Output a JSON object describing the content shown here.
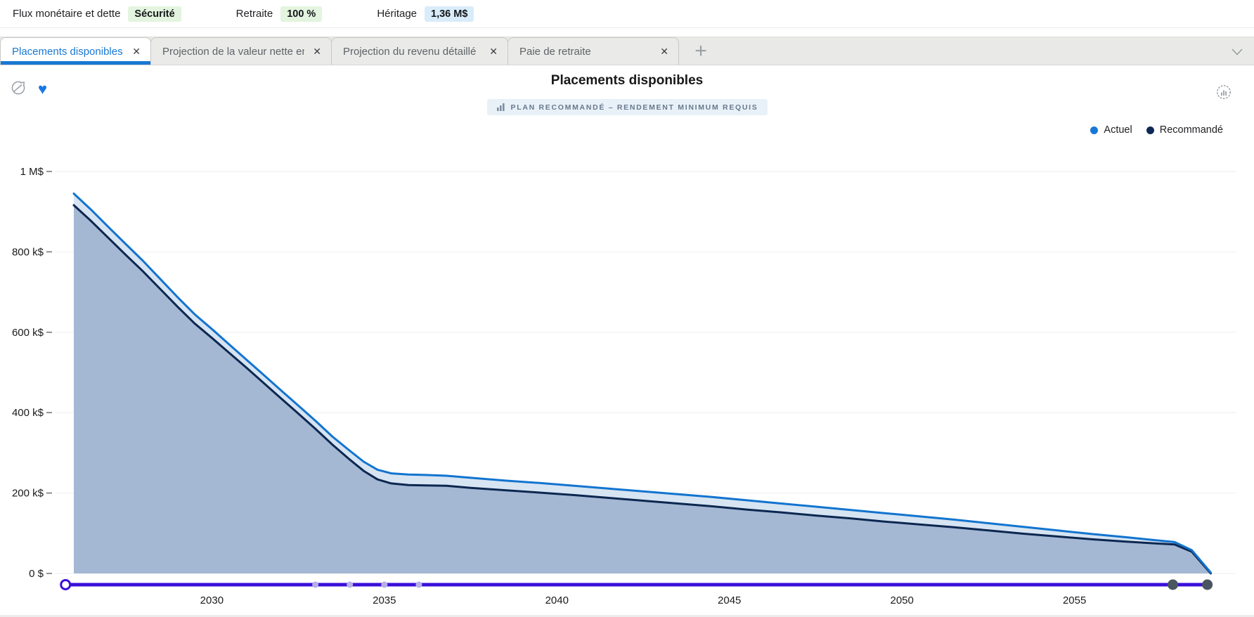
{
  "header": {
    "items": [
      {
        "label": "Flux monétaire et dette",
        "badge": "Sécurité",
        "badge_color": "#e3f4df"
      },
      {
        "label": "Retraite",
        "badge": "100 %",
        "badge_color": "#e3f4df"
      },
      {
        "label": "Héritage",
        "badge": "1,36 M$",
        "badge_color": "#d9ecfa"
      }
    ]
  },
  "tabs": {
    "items": [
      {
        "label": "Placements disponibles",
        "active": true
      },
      {
        "label": "Projection de la valeur nette emp",
        "active": false
      },
      {
        "label": "Projection du revenu détaillé",
        "active": false
      },
      {
        "label": "Paie de retraite",
        "active": false
      }
    ],
    "close_glyph": "✕",
    "add_glyph": "+"
  },
  "chart": {
    "title": "Placements disponibles",
    "subtitle": "PLAN RECOMMANDÉ – RENDEMENT MINIMUM REQUIS",
    "legend": [
      {
        "label": "Actuel",
        "color": "#1878d8"
      },
      {
        "label": "Recommandé",
        "color": "#0d2a56"
      }
    ]
  },
  "chart_data": {
    "type": "area",
    "title": "Placements disponibles",
    "unit": "k$",
    "xlim": [
      2026,
      2059
    ],
    "ylim": [
      0,
      1000
    ],
    "grid": true,
    "legend_position": "top-right",
    "y_ticks": [
      {
        "label": "1 M$",
        "value": 1000
      },
      {
        "label": "800 k$",
        "value": 800
      },
      {
        "label": "600 k$",
        "value": 600
      },
      {
        "label": "400 k$",
        "value": 400
      },
      {
        "label": "200 k$",
        "value": 200
      },
      {
        "label": "0 $",
        "value": 0
      }
    ],
    "x_ticks": [
      2030,
      2035,
      2040,
      2045,
      2050,
      2055
    ],
    "fills": {
      "between": "#d7e4f2",
      "below": "#a4b8d4"
    },
    "series": [
      {
        "name": "Actuel",
        "color": "#1274cf",
        "points": [
          [
            2026,
            945
          ],
          [
            2026.5,
            905
          ],
          [
            2027,
            862
          ],
          [
            2027.5,
            820
          ],
          [
            2028,
            778
          ],
          [
            2028.5,
            733
          ],
          [
            2029,
            688
          ],
          [
            2029.5,
            645
          ],
          [
            2030,
            608
          ],
          [
            2030.5,
            570
          ],
          [
            2031,
            532
          ],
          [
            2031.5,
            494
          ],
          [
            2032,
            456
          ],
          [
            2032.5,
            418
          ],
          [
            2033,
            380
          ],
          [
            2033.5,
            340
          ],
          [
            2034,
            305
          ],
          [
            2034.4,
            278
          ],
          [
            2034.8,
            258
          ],
          [
            2035.2,
            249
          ],
          [
            2035.7,
            246
          ],
          [
            2036.2,
            245
          ],
          [
            2036.8,
            243
          ],
          [
            2037.5,
            238
          ],
          [
            2038.5,
            231
          ],
          [
            2039.5,
            225
          ],
          [
            2040.5,
            218
          ],
          [
            2041.5,
            211
          ],
          [
            2042.5,
            204
          ],
          [
            2043.5,
            197
          ],
          [
            2044.5,
            190
          ],
          [
            2045.5,
            182
          ],
          [
            2046.5,
            174
          ],
          [
            2047.5,
            166
          ],
          [
            2048.5,
            158
          ],
          [
            2049.5,
            150
          ],
          [
            2050.5,
            142
          ],
          [
            2051.5,
            134
          ],
          [
            2052.5,
            125
          ],
          [
            2053.5,
            116
          ],
          [
            2054.5,
            107
          ],
          [
            2055.5,
            98
          ],
          [
            2056.5,
            90
          ],
          [
            2057.3,
            83
          ],
          [
            2057.9,
            78
          ],
          [
            2058.4,
            58
          ],
          [
            2058.95,
            2
          ]
        ]
      },
      {
        "name": "Recommandé",
        "color": "#0c2750",
        "points": [
          [
            2026,
            916
          ],
          [
            2026.5,
            877
          ],
          [
            2027,
            835
          ],
          [
            2027.5,
            793
          ],
          [
            2028,
            752
          ],
          [
            2028.5,
            708
          ],
          [
            2029,
            664
          ],
          [
            2029.5,
            622
          ],
          [
            2030,
            586
          ],
          [
            2030.5,
            549
          ],
          [
            2031,
            512
          ],
          [
            2031.5,
            474
          ],
          [
            2032,
            436
          ],
          [
            2032.5,
            398
          ],
          [
            2033,
            360
          ],
          [
            2033.5,
            320
          ],
          [
            2034,
            283
          ],
          [
            2034.4,
            255
          ],
          [
            2034.8,
            234
          ],
          [
            2035.2,
            224
          ],
          [
            2035.7,
            220
          ],
          [
            2036.2,
            219
          ],
          [
            2036.8,
            218
          ],
          [
            2037.5,
            213
          ],
          [
            2038.5,
            207
          ],
          [
            2039.5,
            201
          ],
          [
            2040.5,
            195
          ],
          [
            2041.5,
            188
          ],
          [
            2042.5,
            181
          ],
          [
            2043.5,
            174
          ],
          [
            2044.5,
            167
          ],
          [
            2045.5,
            159
          ],
          [
            2046.5,
            152
          ],
          [
            2047.5,
            144
          ],
          [
            2048.5,
            137
          ],
          [
            2049.5,
            129
          ],
          [
            2050.5,
            122
          ],
          [
            2051.5,
            115
          ],
          [
            2052.5,
            107
          ],
          [
            2053.5,
            99
          ],
          [
            2054.5,
            92
          ],
          [
            2055.5,
            85
          ],
          [
            2056.5,
            79
          ],
          [
            2057.3,
            75
          ],
          [
            2057.9,
            72
          ],
          [
            2058.4,
            54
          ],
          [
            2058.95,
            0
          ]
        ]
      }
    ],
    "slider": {
      "track_color": "#3b10da",
      "start_year": 2025.76,
      "end_year": 2058.85,
      "tick_years": [
        2033,
        2034,
        2035,
        2036
      ],
      "tick_color": "#b6b0e8",
      "end_handle_years": [
        2057.85,
        2058.85
      ],
      "handle_color": "#4a5561"
    }
  }
}
